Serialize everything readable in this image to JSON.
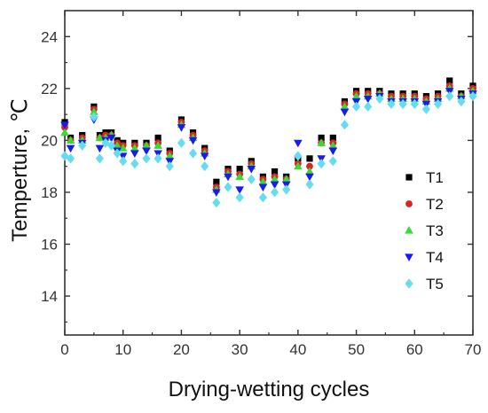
{
  "chart_data": {
    "type": "scatter",
    "title": "",
    "xlabel": "Drying-wetting cycles",
    "ylabel": "Temperture, ℃",
    "xlim": [
      0,
      70
    ],
    "ylim": [
      12.5,
      25
    ],
    "xticks": [
      0,
      10,
      20,
      30,
      40,
      50,
      60,
      70
    ],
    "yticks": [
      14,
      16,
      18,
      20,
      22,
      24
    ],
    "grid": false,
    "legend_position": "right",
    "x": [
      0,
      1,
      3,
      5,
      6,
      7,
      8,
      9,
      10,
      12,
      14,
      16,
      18,
      20,
      22,
      24,
      26,
      28,
      30,
      32,
      34,
      36,
      38,
      40,
      42,
      44,
      46,
      48,
      50,
      52,
      54,
      56,
      58,
      60,
      62,
      64,
      66,
      68,
      70
    ],
    "series": [
      {
        "name": "T1",
        "marker": "square",
        "color": "#000000",
        "values": [
          20.7,
          20.1,
          20.2,
          21.3,
          20.2,
          20.3,
          20.3,
          20.0,
          19.9,
          19.9,
          19.9,
          20.1,
          19.6,
          20.8,
          20.3,
          19.7,
          18.4,
          18.9,
          18.9,
          19.2,
          18.6,
          18.8,
          18.6,
          19.3,
          19.3,
          20.1,
          20.1,
          21.5,
          21.9,
          21.9,
          21.9,
          21.8,
          21.8,
          21.8,
          21.7,
          21.8,
          22.3,
          21.8,
          22.1
        ]
      },
      {
        "name": "T2",
        "marker": "circle",
        "color": "#dd2222",
        "values": [
          20.5,
          20.0,
          20.1,
          21.2,
          20.1,
          20.2,
          20.2,
          19.9,
          19.8,
          19.8,
          19.8,
          19.9,
          19.5,
          20.7,
          20.2,
          19.6,
          18.2,
          18.8,
          18.7,
          19.1,
          18.5,
          18.6,
          18.5,
          19.1,
          19.0,
          19.9,
          19.9,
          21.4,
          21.8,
          21.8,
          21.8,
          21.7,
          21.7,
          21.7,
          21.6,
          21.7,
          22.1,
          21.7,
          22.0
        ]
      },
      {
        "name": "T3",
        "marker": "triangle-up",
        "color": "#33dd33",
        "values": [
          20.3,
          20.0,
          20.0,
          21.1,
          20.1,
          20.1,
          20.2,
          19.8,
          19.7,
          19.7,
          19.8,
          19.8,
          19.4,
          20.6,
          20.1,
          19.5,
          18.1,
          18.7,
          18.6,
          19.0,
          18.4,
          18.5,
          18.5,
          19.0,
          18.8,
          19.9,
          19.8,
          21.3,
          21.7,
          21.7,
          21.8,
          21.6,
          21.6,
          21.6,
          21.5,
          21.6,
          22.0,
          21.7,
          21.9
        ]
      },
      {
        "name": "T4",
        "marker": "triangle-down",
        "color": "#1a1aee",
        "values": [
          20.6,
          19.7,
          19.9,
          20.8,
          19.7,
          20.0,
          20.1,
          19.6,
          19.4,
          19.5,
          19.6,
          19.5,
          19.2,
          20.5,
          20.0,
          19.4,
          18.0,
          18.6,
          18.1,
          18.9,
          18.2,
          18.3,
          18.3,
          19.9,
          18.6,
          19.3,
          19.6,
          21.1,
          21.5,
          21.6,
          21.7,
          21.5,
          21.5,
          21.5,
          21.4,
          21.5,
          21.9,
          21.6,
          21.8
        ]
      },
      {
        "name": "T5",
        "marker": "diamond",
        "color": "#66ddee",
        "values": [
          19.4,
          19.3,
          19.8,
          20.9,
          19.3,
          19.9,
          19.8,
          19.5,
          19.2,
          19.1,
          19.3,
          19.3,
          19.0,
          19.9,
          19.5,
          19.0,
          17.6,
          18.2,
          17.8,
          18.5,
          17.8,
          18.0,
          18.1,
          19.4,
          18.3,
          19.1,
          19.2,
          20.6,
          21.3,
          21.3,
          21.6,
          21.4,
          21.4,
          21.4,
          21.2,
          21.4,
          21.7,
          21.5,
          21.7
        ]
      }
    ]
  }
}
